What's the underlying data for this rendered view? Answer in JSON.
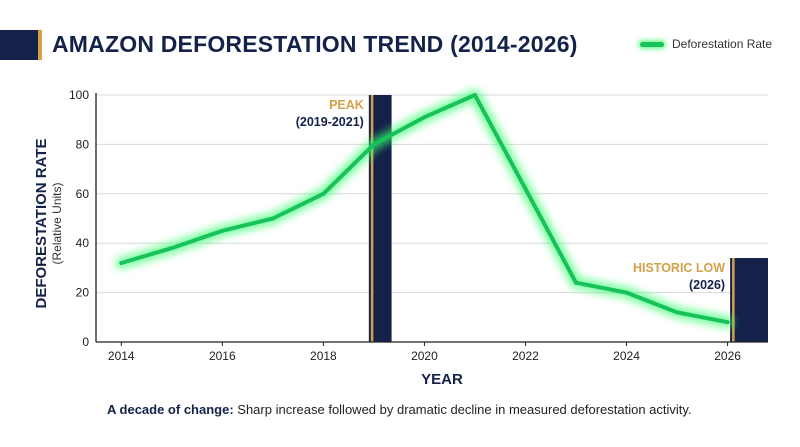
{
  "header": {
    "title": "AMAZON DEFORESTATION TREND (2014-2026)"
  },
  "legend": {
    "label": "Deforestation Rate"
  },
  "caption": {
    "lead": "A decade of change:",
    "text": "Sharp increase followed by dramatic decline in measured deforestation activity."
  },
  "colors": {
    "navy": "#14224a",
    "gold": "#d4a04a",
    "line": "#18c25a",
    "glow": "#39ff6e"
  },
  "chart_data": {
    "type": "line",
    "title": "AMAZON DEFORESTATION TREND (2014-2026)",
    "xlabel": "YEAR",
    "ylabel": "DEFORESTATION RATE",
    "ylabel_sub": "(Relative Units)",
    "xlim": [
      2013.5,
      2026.8
    ],
    "ylim": [
      0,
      100
    ],
    "x_ticks": [
      2014,
      2016,
      2018,
      2020,
      2022,
      2024,
      2026
    ],
    "y_ticks": [
      0,
      20,
      40,
      60,
      80,
      100
    ],
    "grid": "horizontal",
    "legend_position": "top-right",
    "series": [
      {
        "name": "Deforestation Rate",
        "x": [
          2014,
          2015,
          2016,
          2017,
          2018,
          2019,
          2020,
          2021,
          2022,
          2023,
          2024,
          2025,
          2026
        ],
        "y": [
          32,
          38,
          45,
          50,
          60,
          80,
          91,
          100,
          62,
          24,
          20,
          12,
          8
        ]
      }
    ],
    "highlights": [
      {
        "label": "PEAK",
        "sublabel": "(2019-2021)",
        "x_start": 2018.9,
        "x_end": 2019.35,
        "y_top": 100
      },
      {
        "label": "HISTORIC LOW",
        "sublabel": "(2026)",
        "x_start": 2026.05,
        "x_end": 2026.8,
        "y_top": 34
      }
    ]
  }
}
